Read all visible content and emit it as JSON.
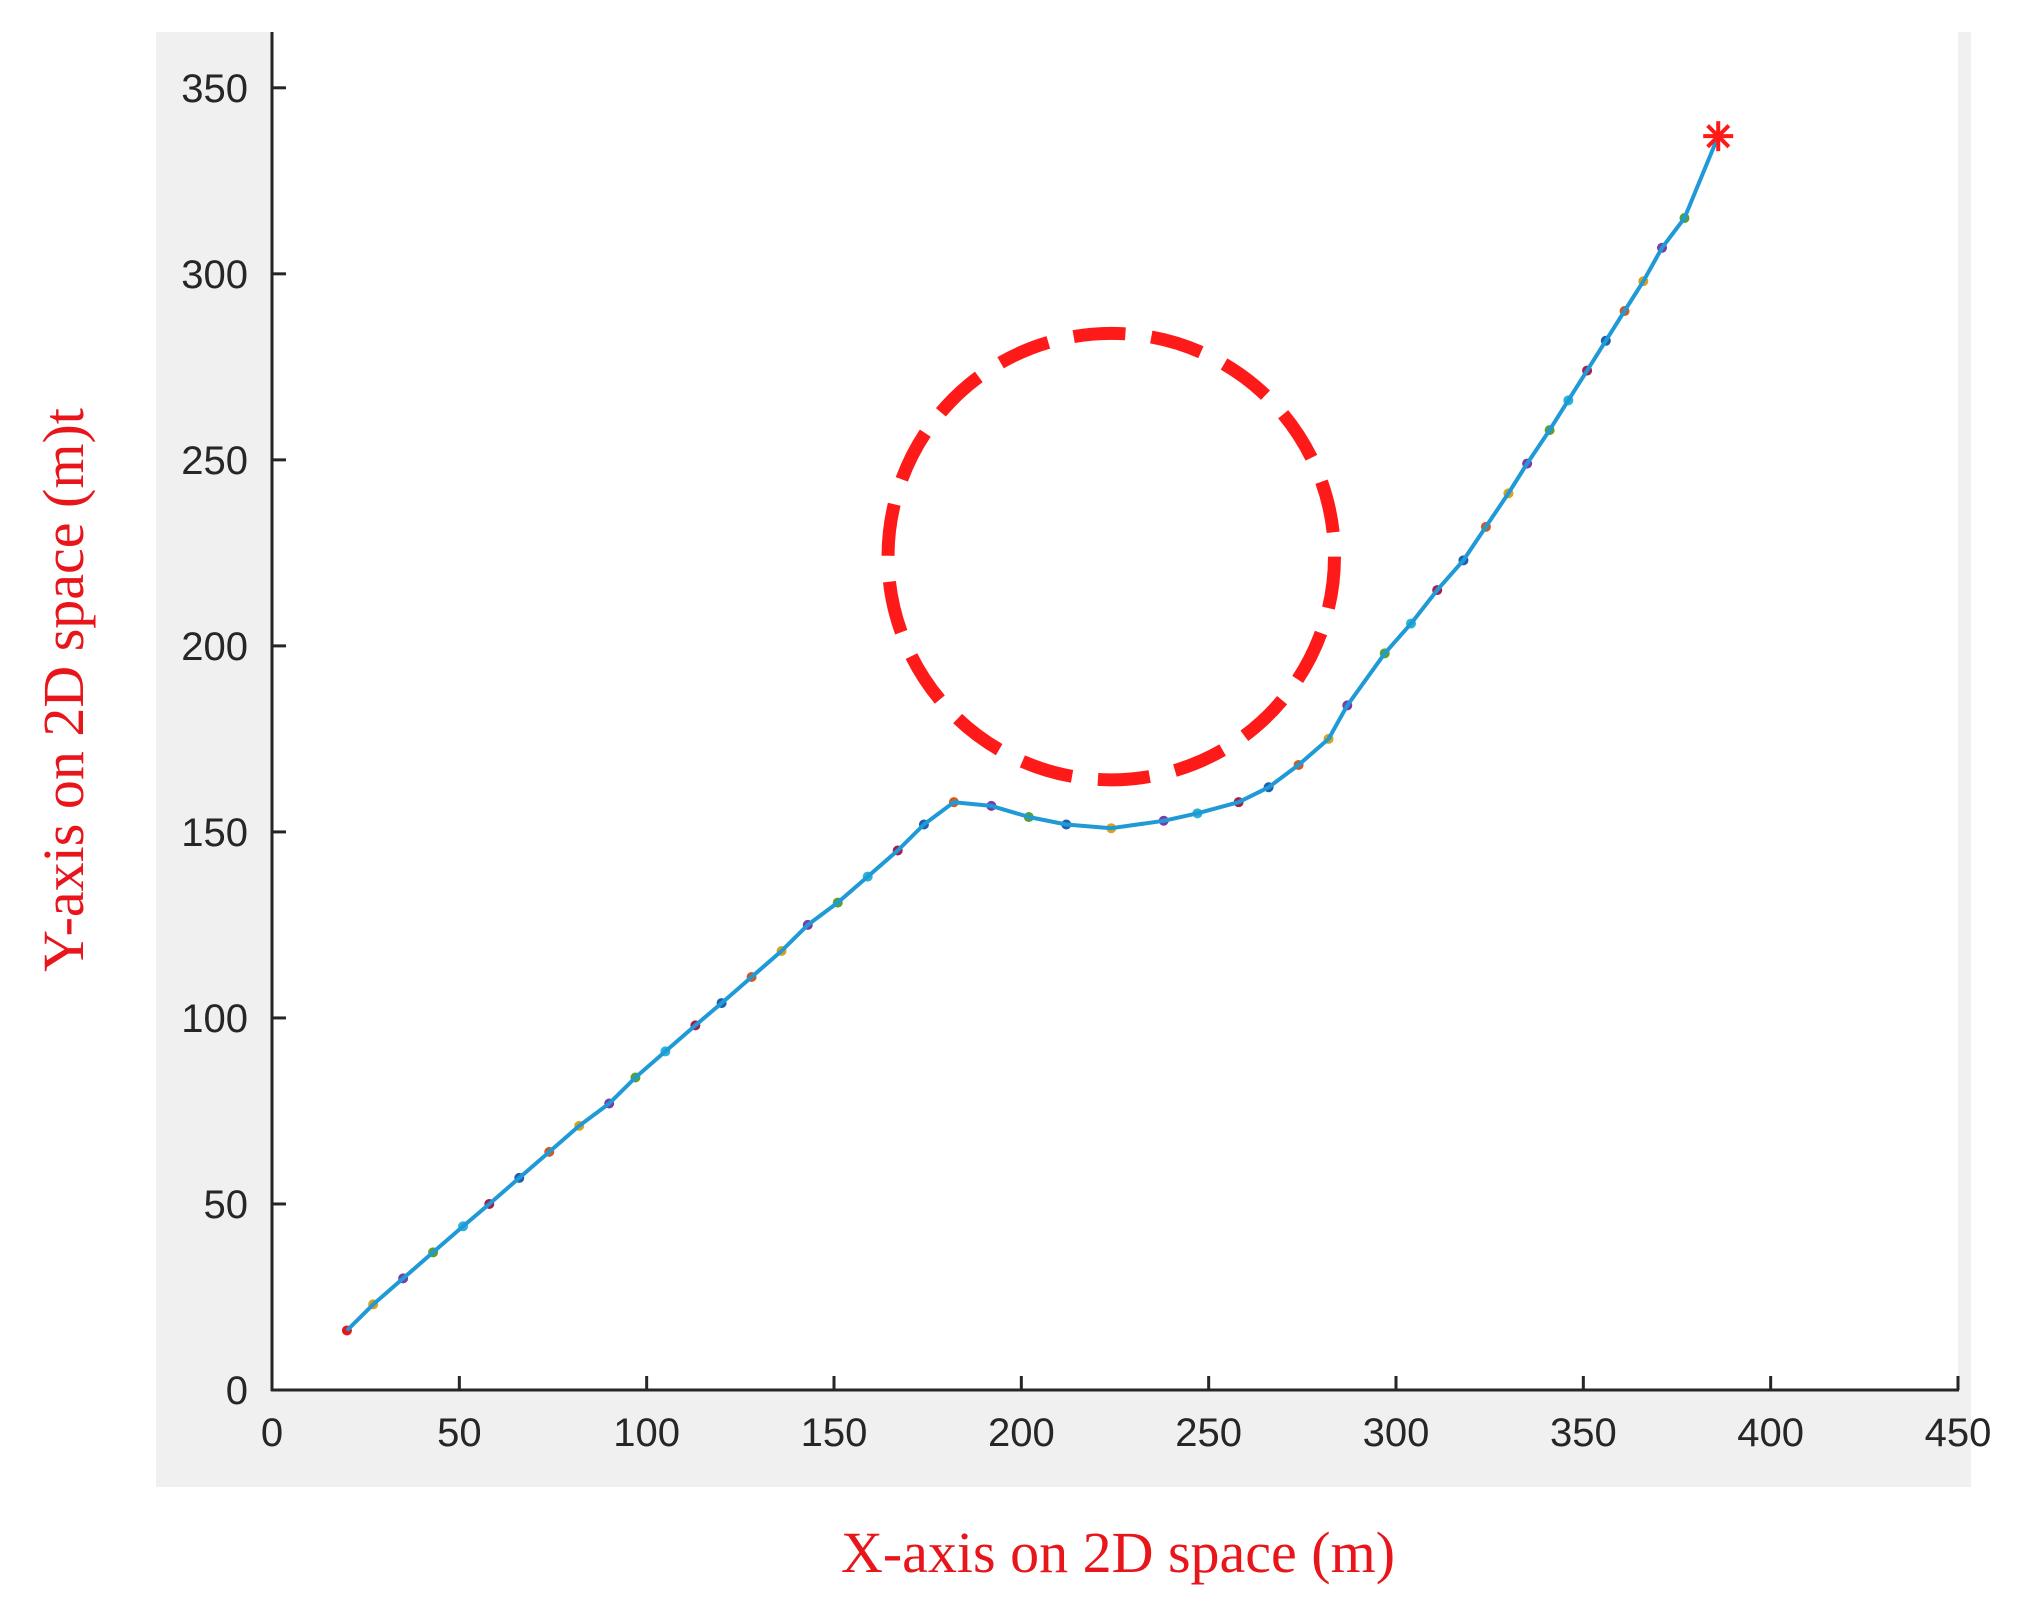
{
  "chart_data": {
    "type": "line",
    "xlabel": "X-axis on 2D space (m)",
    "ylabel": "Y-axis on 2D space (m)t",
    "xlim": [
      0,
      450
    ],
    "ylim": [
      0,
      365
    ],
    "x_ticks": [
      0,
      50,
      100,
      150,
      200,
      250,
      300,
      350,
      400,
      450
    ],
    "y_ticks": [
      0,
      50,
      100,
      150,
      200,
      250,
      300,
      350
    ],
    "grid": false,
    "colors": {
      "path": "#1f9ad6",
      "obstacle": "#ff1a1a",
      "goal": "#ff1a1a",
      "axis_title": "#e8151b",
      "plot_bg": "#f0f0f0",
      "axes_bg": "#ffffff"
    },
    "series": [
      {
        "x": [
          20,
          27,
          35,
          43,
          51,
          58,
          66,
          74,
          82,
          90,
          97,
          105,
          113,
          120,
          128,
          136,
          143,
          151,
          159,
          167,
          174,
          182,
          192,
          202,
          212,
          224,
          238,
          247,
          258,
          266,
          274,
          282,
          287,
          297,
          304,
          311,
          318,
          324,
          330,
          335,
          341,
          346,
          351,
          356,
          361,
          366,
          371,
          377,
          386
        ],
        "y": [
          16,
          23,
          30,
          37,
          44,
          50,
          57,
          64,
          71,
          77,
          84,
          91,
          98,
          104,
          111,
          118,
          125,
          131,
          138,
          145,
          152,
          158,
          157,
          154,
          152,
          151,
          153,
          155,
          158,
          162,
          168,
          175,
          184,
          198,
          206,
          215,
          223,
          232,
          241,
          249,
          258,
          266,
          274,
          282,
          290,
          298,
          307,
          315,
          337
        ]
      }
    ],
    "markers": [
      {
        "x": 20,
        "y": 16,
        "color": "#e8151b"
      },
      {
        "x": 27,
        "y": 23,
        "color": "#d9a21b"
      },
      {
        "x": 35,
        "y": 30,
        "color": "#7d3aa8"
      },
      {
        "x": 43,
        "y": 37,
        "color": "#5aa02c"
      },
      {
        "x": 51,
        "y": 44,
        "color": "#2ab3d8"
      },
      {
        "x": 58,
        "y": 50,
        "color": "#a0204e"
      },
      {
        "x": 66,
        "y": 57,
        "color": "#1f5fb0"
      },
      {
        "x": 74,
        "y": 64,
        "color": "#d35a1f"
      },
      {
        "x": 82,
        "y": 71,
        "color": "#d9a21b"
      },
      {
        "x": 90,
        "y": 77,
        "color": "#7d3aa8"
      },
      {
        "x": 97,
        "y": 84,
        "color": "#5aa02c"
      },
      {
        "x": 105,
        "y": 91,
        "color": "#2ab3d8"
      },
      {
        "x": 113,
        "y": 98,
        "color": "#a0204e"
      },
      {
        "x": 120,
        "y": 104,
        "color": "#1f5fb0"
      },
      {
        "x": 128,
        "y": 111,
        "color": "#d35a1f"
      },
      {
        "x": 136,
        "y": 118,
        "color": "#d9a21b"
      },
      {
        "x": 143,
        "y": 125,
        "color": "#7d3aa8"
      },
      {
        "x": 151,
        "y": 131,
        "color": "#5aa02c"
      },
      {
        "x": 159,
        "y": 138,
        "color": "#2ab3d8"
      },
      {
        "x": 167,
        "y": 145,
        "color": "#a0204e"
      },
      {
        "x": 174,
        "y": 152,
        "color": "#1f5fb0"
      },
      {
        "x": 182,
        "y": 158,
        "color": "#d35a1f"
      },
      {
        "x": 192,
        "y": 157,
        "color": "#7d3aa8"
      },
      {
        "x": 202,
        "y": 154,
        "color": "#5aa02c"
      },
      {
        "x": 212,
        "y": 152,
        "color": "#1f5fb0"
      },
      {
        "x": 224,
        "y": 151,
        "color": "#d9a21b"
      },
      {
        "x": 238,
        "y": 153,
        "color": "#7d3aa8"
      },
      {
        "x": 247,
        "y": 155,
        "color": "#2ab3d8"
      },
      {
        "x": 258,
        "y": 158,
        "color": "#a0204e"
      },
      {
        "x": 266,
        "y": 162,
        "color": "#1f5fb0"
      },
      {
        "x": 274,
        "y": 168,
        "color": "#d35a1f"
      },
      {
        "x": 282,
        "y": 175,
        "color": "#d9a21b"
      },
      {
        "x": 287,
        "y": 184,
        "color": "#7d3aa8"
      },
      {
        "x": 297,
        "y": 198,
        "color": "#5aa02c"
      },
      {
        "x": 304,
        "y": 206,
        "color": "#2ab3d8"
      },
      {
        "x": 311,
        "y": 215,
        "color": "#a0204e"
      },
      {
        "x": 318,
        "y": 223,
        "color": "#1f5fb0"
      },
      {
        "x": 324,
        "y": 232,
        "color": "#d35a1f"
      },
      {
        "x": 330,
        "y": 241,
        "color": "#d9a21b"
      },
      {
        "x": 335,
        "y": 249,
        "color": "#7d3aa8"
      },
      {
        "x": 341,
        "y": 258,
        "color": "#5aa02c"
      },
      {
        "x": 346,
        "y": 266,
        "color": "#2ab3d8"
      },
      {
        "x": 351,
        "y": 274,
        "color": "#a0204e"
      },
      {
        "x": 356,
        "y": 282,
        "color": "#1f5fb0"
      },
      {
        "x": 361,
        "y": 290,
        "color": "#d35a1f"
      },
      {
        "x": 366,
        "y": 298,
        "color": "#d9a21b"
      },
      {
        "x": 371,
        "y": 307,
        "color": "#7d3aa8"
      },
      {
        "x": 377,
        "y": 315,
        "color": "#5aa02c"
      }
    ],
    "obstacle": {
      "center_x": 224,
      "center_y": 224,
      "radius": 60
    },
    "goal": {
      "x": 386,
      "y": 337
    }
  }
}
